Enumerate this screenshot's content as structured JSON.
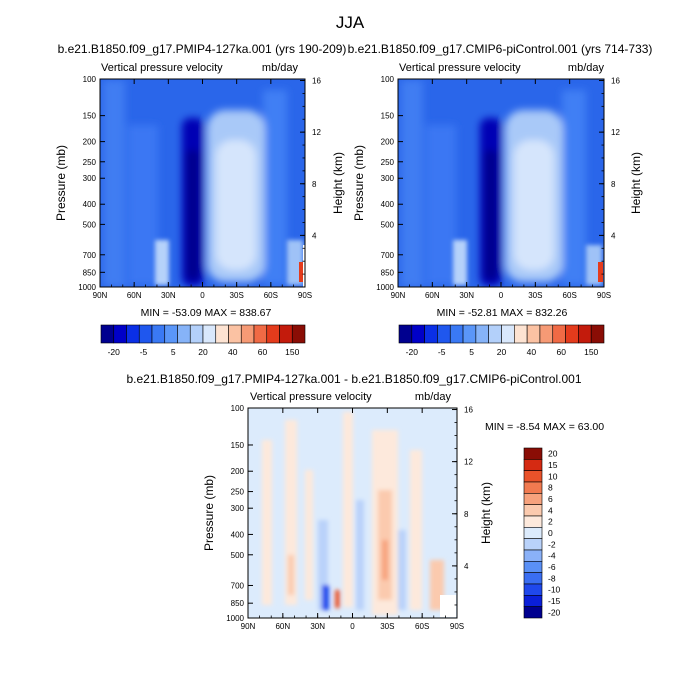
{
  "figure": {
    "title": "JJA"
  },
  "colors": {
    "palette": [
      "#00008f",
      "#0000c8",
      "#0a2fe6",
      "#1f57ee",
      "#3a79f4",
      "#5a96f8",
      "#86b3f8",
      "#b3d0fa",
      "#d9e8fc",
      "#fde3d2",
      "#fbc2a3",
      "#f69a75",
      "#f06a45",
      "#e43b1c",
      "#c31b0c",
      "#8a0d05"
    ],
    "diff_palette": [
      "#00008f",
      "#0a1fd9",
      "#1f48ec",
      "#3a6ef2",
      "#5a90f6",
      "#8ab1f8",
      "#b9d2fa",
      "#dcebfc",
      "#fde9dc",
      "#fbcaae",
      "#f7a27d",
      "#f17a50",
      "#e9522a",
      "#d52a12",
      "#8a0d05"
    ]
  },
  "chart_data": [
    {
      "type": "heatmap",
      "title": "b.e21.B1850.f09_g17.PMIP4-127ka.001 (yrs 190-209)",
      "variable_label": "Vertical pressure velocity",
      "units": "mb/day",
      "xlabel": "",
      "ylabel": "Pressure (mb)",
      "ylabel_right": "Height (km)",
      "x_ticks": [
        "90N",
        "60N",
        "30N",
        "0",
        "30S",
        "60S",
        "90S"
      ],
      "y_ticks": [
        "100",
        "150",
        "200",
        "250",
        "300",
        "400",
        "500",
        "700",
        "850",
        "1000"
      ],
      "y_log": true,
      "ylim": [
        1000,
        100
      ],
      "height_ticks": [
        "4",
        "8",
        "12",
        "16"
      ],
      "stats_text": "MIN = -53.09   MAX = 838.67",
      "min": -53.09,
      "max": 838.67,
      "colorbar_levels": [
        "-20",
        "-5",
        "5",
        "20",
        "40",
        "60",
        "150"
      ]
    },
    {
      "type": "heatmap",
      "title": "b.e21.B1850.f09_g17.CMIP6-piControl.001 (yrs 714-733)",
      "variable_label": "Vertical pressure velocity",
      "units": "mb/day",
      "xlabel": "",
      "ylabel": "Pressure (mb)",
      "ylabel_right": "Height (km)",
      "x_ticks": [
        "90N",
        "60N",
        "30N",
        "0",
        "30S",
        "60S",
        "90S"
      ],
      "y_ticks": [
        "100",
        "150",
        "200",
        "250",
        "300",
        "400",
        "500",
        "700",
        "850",
        "1000"
      ],
      "y_log": true,
      "ylim": [
        1000,
        100
      ],
      "height_ticks": [
        "4",
        "8",
        "12",
        "16"
      ],
      "stats_text": "MIN = -52.81   MAX = 832.26",
      "min": -52.81,
      "max": 832.26,
      "colorbar_levels": [
        "-20",
        "-5",
        "5",
        "20",
        "40",
        "60",
        "150"
      ]
    },
    {
      "type": "heatmap",
      "title": "b.e21.B1850.f09_g17.PMIP4-127ka.001 - b.e21.B1850.f09_g17.CMIP6-piControl.001",
      "variable_label": "Vertical pressure velocity",
      "units": "mb/day",
      "xlabel": "",
      "ylabel": "Pressure (mb)",
      "ylabel_right": "Height (km)",
      "x_ticks": [
        "90N",
        "60N",
        "30N",
        "0",
        "30S",
        "60S",
        "90S"
      ],
      "y_ticks": [
        "100",
        "150",
        "200",
        "250",
        "300",
        "400",
        "500",
        "700",
        "850",
        "1000"
      ],
      "y_log": true,
      "ylim": [
        1000,
        100
      ],
      "height_ticks": [
        "4",
        "8",
        "12",
        "16"
      ],
      "stats_text": "MIN =  -8.54   MAX =  63.00",
      "min": -8.54,
      "max": 63.0,
      "colorbar_levels": [
        "20",
        "15",
        "10",
        "8",
        "6",
        "4",
        "2",
        "0",
        "-2",
        "-4",
        "-6",
        "-8",
        "-10",
        "-15",
        "-20"
      ]
    }
  ]
}
